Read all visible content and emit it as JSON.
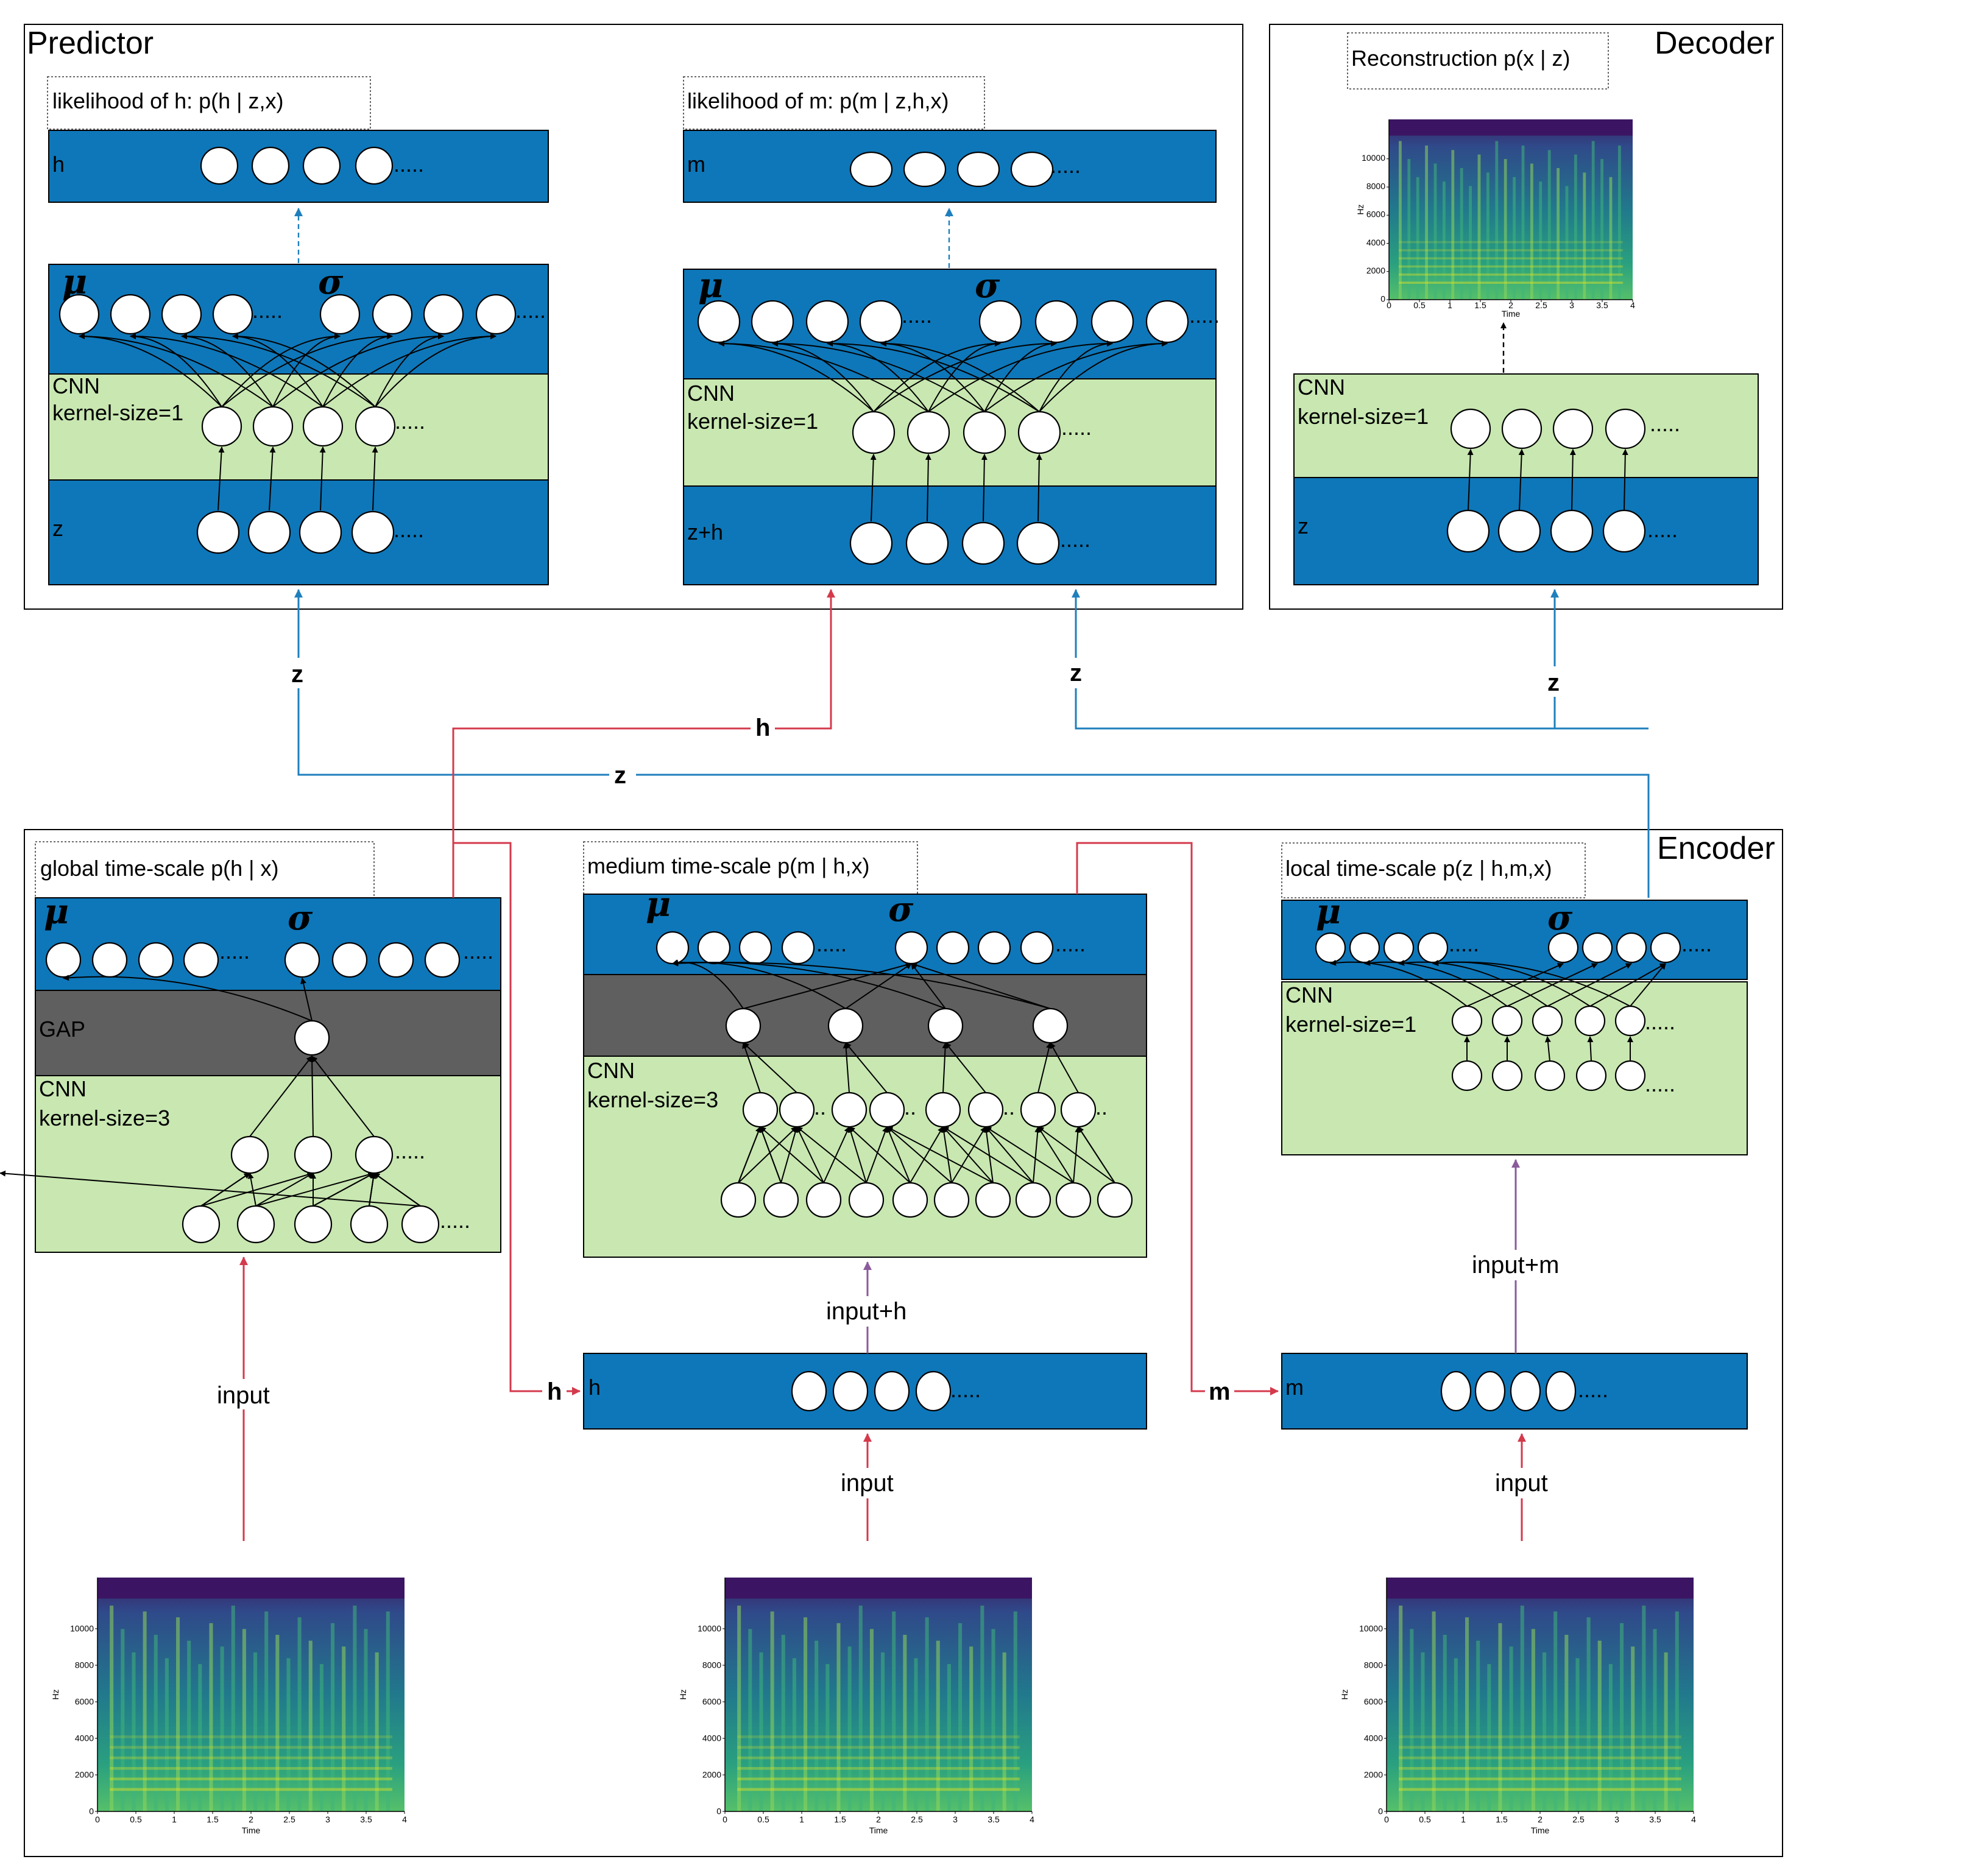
{
  "panels": {
    "predictor": "Predictor",
    "decoder": "Decoder",
    "encoder": "Encoder"
  },
  "captions": {
    "pred_h": "likelihood of h: p(h | z,x)",
    "pred_m": "likelihood of m: p(m | z,h,x)",
    "dec": "Reconstruction p(x | z)",
    "enc_global": "global time-scale p(h | x)",
    "enc_medium": "medium time-scale p(m | h,x)",
    "enc_local": "local time-scale p(z | h,m,x)"
  },
  "layers": {
    "h": "h",
    "m": "m",
    "z": "z",
    "zh": "z+h",
    "cnn": "CNN",
    "k1": "kernel-size=1",
    "k3": "kernel-size=3",
    "gap": "GAP",
    "mu": "μ",
    "sigma": "σ",
    "dots": "....."
  },
  "connections": {
    "z": "z",
    "h": "h",
    "m": "m",
    "input": "input",
    "input_h": "input+h",
    "input_m": "input+m"
  },
  "colors": {
    "layer_blue": "#0e77b9",
    "cnn_green": "#c8e7b1",
    "gap_grey": "#5f5f5f",
    "h_path_red": "#d43a4c",
    "z_path_blue": "#1f7fbd",
    "input_path_purple": "#8b5a9c"
  },
  "spectrogram": {
    "ylabel": "Hz",
    "xlabel": "Time",
    "y_ticks": [
      "0",
      "2000",
      "4000",
      "6000",
      "8000",
      "10000"
    ],
    "x_ticks": [
      "0",
      "0.5",
      "1",
      "1.5",
      "2",
      "2.5",
      "3",
      "3.5",
      "4"
    ]
  }
}
